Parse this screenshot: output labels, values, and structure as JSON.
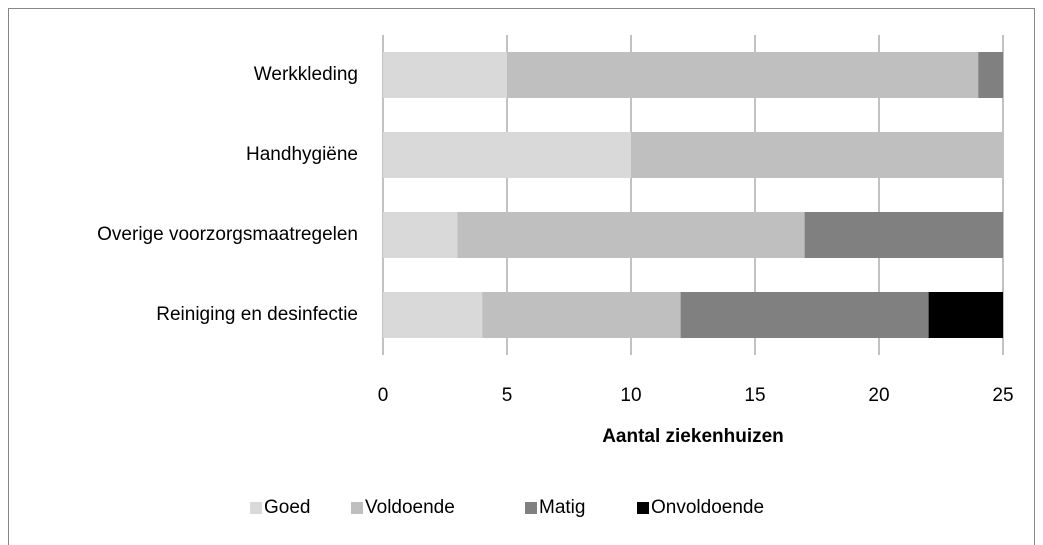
{
  "chart_data": {
    "type": "stacked_barh",
    "categories": [
      "Werkkleding",
      "Handhygiëne",
      "Overige voorzorgsmaatregelen",
      "Reiniging en desinfectie"
    ],
    "series": [
      {
        "name": "Goed",
        "color": "#d9d9d9",
        "values": [
          5,
          10,
          3,
          4
        ]
      },
      {
        "name": "Voldoende",
        "color": "#bfbfbf",
        "values": [
          19,
          15,
          14,
          8
        ]
      },
      {
        "name": "Matig",
        "color": "#808080",
        "values": [
          1,
          0,
          8,
          10
        ]
      },
      {
        "name": "Onvoldoende",
        "color": "#000000",
        "values": [
          0,
          0,
          0,
          3
        ]
      }
    ],
    "xlabel": "Aantal ziekenhuizen",
    "xlim": [
      0,
      25
    ],
    "xticks": [
      0,
      5,
      10,
      15,
      20,
      25
    ],
    "grid": true,
    "legend": "bottom"
  }
}
